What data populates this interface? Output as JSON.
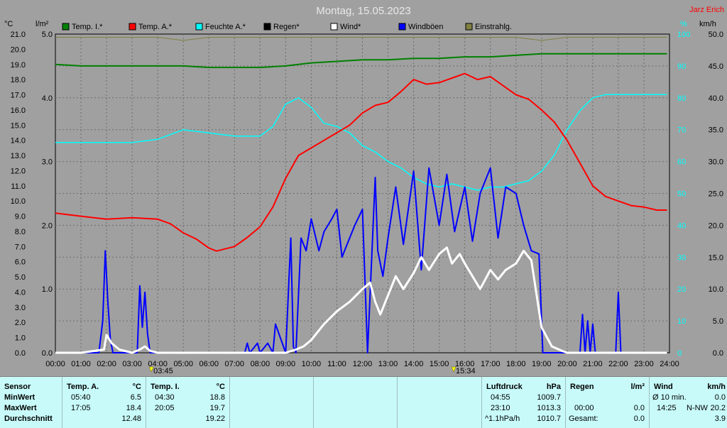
{
  "title": "Montag, 15.05.2023",
  "author": "Jarz Erich",
  "axes": {
    "left_unit": "°C",
    "left_unit2": "l/m²",
    "right_unit": "%",
    "right_unit2": "km/h",
    "temp_ticks": [
      "0.0",
      "1.0",
      "2.0",
      "3.0",
      "4.0",
      "5.0",
      "6.0",
      "7.0",
      "8.0",
      "9.0",
      "10.0",
      "11.0",
      "12.0",
      "13.0",
      "14.0",
      "15.0",
      "16.0",
      "17.0",
      "18.0",
      "19.0",
      "20.0",
      "21.0"
    ],
    "rain_ticks": [
      "0.0",
      "1.0",
      "2.0",
      "3.0",
      "4.0",
      "5.0"
    ],
    "humidity_ticks": [
      "0",
      "10",
      "20",
      "30",
      "40",
      "50",
      "60",
      "70",
      "80",
      "90",
      "100"
    ],
    "wind_ticks": [
      "0.0",
      "5.0",
      "10.0",
      "15.0",
      "20.0",
      "25.0",
      "30.0",
      "35.0",
      "40.0",
      "45.0",
      "50.0"
    ],
    "time_ticks": [
      "00:00",
      "01:00",
      "02:00",
      "03:00",
      "04:00",
      "05:00",
      "06:00",
      "07:00",
      "08:00",
      "09:00",
      "10:00",
      "11:00",
      "12:00",
      "13:00",
      "14:00",
      "15:00",
      "16:00",
      "17:00",
      "18:00",
      "19:00",
      "20:00",
      "21:00",
      "22:00",
      "23:00",
      "24:00"
    ]
  },
  "markers": {
    "sunrise": "03:45",
    "sunset": "15:34"
  },
  "legend": [
    {
      "label": "Temp. I.*",
      "color": "#008000"
    },
    {
      "label": "Temp. A.*",
      "color": "#ff0000"
    },
    {
      "label": "Feuchte A.*",
      "color": "#00ffff"
    },
    {
      "label": "Regen*",
      "color": "#000000"
    },
    {
      "label": "Wind*",
      "color": "#ffffff"
    },
    {
      "label": "Windböen",
      "color": "#0000ff"
    },
    {
      "label": "Einstrahlg.",
      "color": "#808040"
    }
  ],
  "chart_data": {
    "type": "line",
    "x_unit": "hour",
    "xlim": [
      0,
      24
    ],
    "series": [
      {
        "name": "Temp. I.*",
        "axis": "temp",
        "color": "#008000",
        "x": [
          0,
          1,
          2,
          3,
          4,
          5,
          6,
          7,
          8,
          9,
          10,
          11,
          12,
          13,
          14,
          15,
          16,
          17,
          18,
          19,
          20,
          21,
          22,
          23,
          23.9
        ],
        "y": [
          19.0,
          18.9,
          18.9,
          18.9,
          18.9,
          18.9,
          18.8,
          18.8,
          18.8,
          18.9,
          19.1,
          19.2,
          19.3,
          19.3,
          19.4,
          19.4,
          19.5,
          19.5,
          19.6,
          19.7,
          19.7,
          19.7,
          19.7,
          19.7,
          19.7
        ]
      },
      {
        "name": "Temp. A.*",
        "axis": "temp",
        "color": "#ff0000",
        "x": [
          0,
          1,
          2,
          3,
          4,
          4.5,
          5,
          5.5,
          6,
          6.3,
          7,
          7.5,
          8,
          8.5,
          9,
          9.5,
          10,
          10.5,
          11,
          11.5,
          12,
          12.5,
          13,
          13.5,
          14,
          14.5,
          15,
          15.5,
          16,
          16.5,
          17,
          17.5,
          18,
          18.5,
          19,
          19.5,
          20,
          20.5,
          21,
          21.5,
          22,
          22.5,
          23,
          23.5,
          23.9
        ],
        "y": [
          9.2,
          9.0,
          8.8,
          8.9,
          8.8,
          8.5,
          7.9,
          7.5,
          6.9,
          6.7,
          7.0,
          7.6,
          8.3,
          9.6,
          11.5,
          13.0,
          13.5,
          14.0,
          14.5,
          15.0,
          15.8,
          16.3,
          16.5,
          17.2,
          18.0,
          17.7,
          17.8,
          18.1,
          18.4,
          18.0,
          18.2,
          17.6,
          17.0,
          16.7,
          16.0,
          15.2,
          14.0,
          12.5,
          11.0,
          10.3,
          10.0,
          9.7,
          9.6,
          9.4,
          9.4
        ]
      },
      {
        "name": "Feuchte A.*",
        "axis": "humidity",
        "color": "#00ffff",
        "x": [
          0,
          1,
          2,
          3,
          4,
          5,
          6,
          7,
          8,
          8.5,
          9,
          9.5,
          10,
          10.5,
          11,
          11.5,
          12,
          12.5,
          13,
          13.5,
          14,
          14.5,
          15,
          15.5,
          16,
          16.5,
          17,
          17.5,
          18,
          18.5,
          19,
          19.5,
          20,
          20.5,
          21,
          21.5,
          22,
          22.5,
          23,
          23.9
        ],
        "y": [
          66,
          66,
          66,
          66,
          67,
          70,
          69,
          68,
          68,
          71,
          78,
          80,
          77,
          72,
          71,
          69,
          65,
          63,
          60,
          58,
          55,
          53,
          52,
          53,
          52,
          51,
          52,
          52,
          53,
          54,
          57,
          62,
          70,
          76,
          80,
          81,
          81,
          81,
          81,
          81
        ]
      },
      {
        "name": "Wind*",
        "axis": "wind",
        "color": "#ffffff",
        "x": [
          0,
          1,
          1.9,
          2.0,
          2.2,
          2.5,
          3.0,
          3.3,
          3.5,
          3.7,
          4.0,
          5,
          6,
          7,
          8,
          9,
          9.4,
          9.7,
          10,
          10.5,
          11,
          11.5,
          12,
          12.3,
          12.5,
          12.7,
          13,
          13.3,
          13.6,
          14,
          14.3,
          14.6,
          15,
          15.3,
          15.5,
          15.8,
          16,
          16.3,
          16.6,
          17,
          17.3,
          17.6,
          18,
          18.3,
          18.6,
          19,
          19.4,
          19.8,
          20,
          21,
          22,
          23,
          23.9
        ],
        "y": [
          0,
          0,
          0.5,
          2.8,
          1.5,
          0.5,
          0,
          0.5,
          1.0,
          0.3,
          0,
          0,
          0,
          0,
          0,
          0,
          0.5,
          1.0,
          2.0,
          4.5,
          6.5,
          8.0,
          10.0,
          11.0,
          8.0,
          6.0,
          9.0,
          12.0,
          10.0,
          12.5,
          15.0,
          13.0,
          15.5,
          16.5,
          14.0,
          15.5,
          14.0,
          12.0,
          10.0,
          13.0,
          11.5,
          13.0,
          14.0,
          16.0,
          14.5,
          4.0,
          1.0,
          0.3,
          0,
          0,
          0,
          0,
          0
        ]
      },
      {
        "name": "Windböen",
        "axis": "wind",
        "color": "#0000ff",
        "x": [
          0,
          1.7,
          1.85,
          1.95,
          2.05,
          2.15,
          2.25,
          2.35,
          3.2,
          3.3,
          3.4,
          3.5,
          3.6,
          3.7,
          3.8,
          7.4,
          7.5,
          7.6,
          7.9,
          8.0,
          8.3,
          8.5,
          8.6,
          9.0,
          9.2,
          9.3,
          9.4,
          9.6,
          9.8,
          10.0,
          10.3,
          10.5,
          10.8,
          11.0,
          11.2,
          11.5,
          11.7,
          12.0,
          12.2,
          12.5,
          12.6,
          12.8,
          13.0,
          13.3,
          13.6,
          14.0,
          14.3,
          14.6,
          15.0,
          15.3,
          15.6,
          16.0,
          16.3,
          16.6,
          17.0,
          17.3,
          17.6,
          18.0,
          18.3,
          18.6,
          18.9,
          19.0,
          19.05,
          19.2,
          20.5,
          20.6,
          20.7,
          20.8,
          20.9,
          21.0,
          21.1,
          21.2,
          21.3,
          21.8,
          21.9,
          22.0,
          22.1,
          22.2,
          22.3,
          23.9
        ],
        "y": [
          0,
          0,
          5.0,
          16.0,
          8.0,
          2.0,
          0,
          0,
          0,
          10.5,
          4.0,
          9.5,
          3.0,
          0,
          0,
          0,
          1.5,
          0,
          1.5,
          0,
          1.5,
          0,
          4.5,
          0,
          18.0,
          1.0,
          0,
          18.0,
          16.0,
          21.0,
          16.0,
          19.0,
          21.0,
          22.5,
          15.0,
          18.0,
          20.0,
          22.5,
          0,
          27.5,
          16.0,
          12.0,
          18.0,
          26.0,
          17.0,
          28.5,
          13.0,
          29.0,
          20.0,
          28.0,
          19.0,
          26.0,
          17.5,
          25.0,
          29.0,
          18.0,
          26.0,
          25.0,
          20.0,
          16.0,
          15.5,
          5.0,
          0,
          0,
          0,
          6.0,
          0,
          5.0,
          0,
          4.5,
          0,
          0,
          0,
          0,
          0,
          9.5,
          0,
          0,
          0,
          0
        ]
      },
      {
        "name": "Einstrahlg.",
        "axis": "humidity",
        "color": "#808040",
        "x": [
          0,
          1,
          2,
          3,
          4,
          5,
          6,
          7,
          8,
          9,
          10,
          11,
          12,
          13,
          14,
          15,
          16,
          17,
          18,
          19,
          20,
          21,
          22,
          23,
          23.9
        ],
        "y": [
          99,
          99,
          99,
          99,
          99,
          98,
          99,
          99,
          99,
          99,
          99,
          99,
          99,
          99,
          99,
          99,
          99,
          99,
          99,
          98,
          99,
          99,
          99,
          99,
          99
        ]
      }
    ]
  },
  "stats": {
    "sensor": {
      "header": "Sensor",
      "rows": [
        "MinWert",
        "MaxWert",
        "Durchschnitt"
      ]
    },
    "temp_a": {
      "header": "Temp. A.",
      "unit": "°C",
      "min_time": "05:40",
      "min_val": "6.5",
      "max_time": "17:05",
      "max_val": "18.4",
      "avg": "12.48"
    },
    "temp_i": {
      "header": "Temp. I.",
      "unit": "°C",
      "min_time": "04:30",
      "min_val": "18.8",
      "max_time": "20:05",
      "max_val": "19.7",
      "avg": "19.22"
    },
    "pressure": {
      "header": "Luftdruck",
      "unit": "hPa",
      "min_time": "04:55",
      "min_val": "1009.7",
      "max_time": "23:10",
      "max_val": "1013.3",
      "trend": "^1.1hPa/h",
      "avg": "1010.7"
    },
    "rain": {
      "header": "Regen",
      "unit": "l/m²",
      "time": "00:00",
      "val": "0.0",
      "total_label": "Gesamt:",
      "total": "0.0"
    },
    "wind": {
      "header": "Wind",
      "unit": "km/h",
      "avg_label": "Ø 10 min.",
      "avg_val": "0.0",
      "max_time": "14:25",
      "max_dir": "N-NW",
      "max_val": "20.2",
      "mean": "3.9"
    }
  }
}
